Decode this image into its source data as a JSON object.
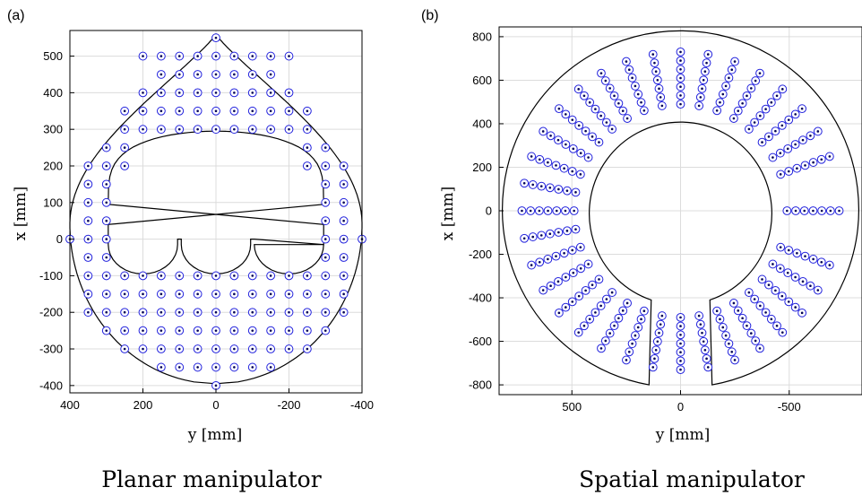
{
  "colors": {
    "marker": "#2222dd",
    "marker_center": "#000055",
    "grid": "#dcdcdc",
    "boundary": "#000000"
  },
  "panels": [
    {
      "label": "(a)",
      "caption": "Planar manipulator",
      "xlabel": "y [mm]",
      "ylabel": "x [mm]",
      "xticks": [
        "400",
        "200",
        "0",
        "-200",
        "-400"
      ],
      "yticks": [
        "500",
        "400",
        "300",
        "200",
        "100",
        "0",
        "-100",
        "-200",
        "-300",
        "-400"
      ]
    },
    {
      "label": "(b)",
      "caption": "Spatial manipulator",
      "xlabel": "y [mm]",
      "ylabel": "x [mm]",
      "xticks": [
        "500",
        "0",
        "-500"
      ],
      "yticks": [
        "800",
        "600",
        "400",
        "200",
        "0",
        "-200",
        "-400",
        "-600",
        "-800"
      ]
    }
  ],
  "chart_data": [
    {
      "type": "scatter",
      "x_axis": {
        "label": "y [mm]",
        "range": [
          400,
          -400
        ],
        "reversed": true,
        "ticks": [
          400,
          200,
          0,
          -200,
          -400
        ]
      },
      "y_axis": {
        "label": "x [mm]",
        "range": [
          -420,
          570
        ],
        "ticks": [
          500,
          400,
          300,
          200,
          100,
          0,
          -100,
          -200,
          -300,
          -400
        ]
      },
      "grid": true,
      "rows": [
        {
          "x": 550,
          "y": [
            0
          ]
        },
        {
          "x": 500,
          "y": [
            200,
            150,
            100,
            50,
            0,
            -50,
            -100,
            -150,
            -200
          ]
        },
        {
          "x": 450,
          "y": [
            150,
            100,
            50,
            0,
            -50,
            -100,
            -150
          ]
        },
        {
          "x": 400,
          "y": [
            200,
            150,
            100,
            50,
            0,
            -50,
            -100,
            -150,
            -200
          ]
        },
        {
          "x": 350,
          "y": [
            250,
            200,
            150,
            100,
            50,
            0,
            -50,
            -100,
            -150,
            -200,
            -250
          ]
        },
        {
          "x": 300,
          "y": [
            250,
            200,
            150,
            100,
            50,
            0,
            -50,
            -100,
            -150,
            -200,
            -250
          ]
        },
        {
          "x": 250,
          "y": [
            300,
            250,
            -250,
            -300
          ]
        },
        {
          "x": 200,
          "y": [
            350,
            300,
            250,
            -250,
            -300,
            -350
          ]
        },
        {
          "x": 150,
          "y": [
            350,
            300,
            -300,
            -350
          ]
        },
        {
          "x": 100,
          "y": [
            350,
            300,
            -300,
            -350
          ]
        },
        {
          "x": 50,
          "y": [
            350,
            300,
            -300,
            -350
          ]
        },
        {
          "x": 0,
          "y": [
            400,
            350,
            300,
            -300,
            -350,
            -400
          ]
        },
        {
          "x": -50,
          "y": [
            350,
            300,
            -300,
            -350
          ]
        },
        {
          "x": -100,
          "y": [
            350,
            300,
            250,
            200,
            150,
            100,
            50,
            0,
            -50,
            -100,
            -150,
            -200,
            -250,
            -300,
            -350
          ]
        },
        {
          "x": -150,
          "y": [
            350,
            300,
            250,
            200,
            150,
            100,
            50,
            0,
            -50,
            -100,
            -150,
            -200,
            -250,
            -300,
            -350
          ]
        },
        {
          "x": -200,
          "y": [
            350,
            300,
            250,
            200,
            150,
            100,
            50,
            0,
            -50,
            -100,
            -150,
            -200,
            -250,
            -300,
            -350
          ]
        },
        {
          "x": -250,
          "y": [
            300,
            250,
            200,
            150,
            100,
            50,
            0,
            -50,
            -100,
            -150,
            -200,
            -250,
            -300
          ]
        },
        {
          "x": -300,
          "y": [
            250,
            200,
            150,
            100,
            50,
            0,
            -50,
            -100,
            -150,
            -200,
            -250
          ]
        },
        {
          "x": -350,
          "y": [
            150,
            100,
            50,
            0,
            -50,
            -100,
            -150
          ]
        },
        {
          "x": -400,
          "y": [
            0
          ]
        }
      ],
      "outer_boundary": {
        "top_x": 560,
        "bottom_x": -395,
        "max_abs_y": 400
      },
      "inner_boundary": {
        "top_x": 295,
        "bottom_x": -95,
        "max_abs_y": 295,
        "notch_y": [
          -100,
          100
        ],
        "notch_top_x": 0
      }
    },
    {
      "type": "scatter",
      "x_axis": {
        "label": "y [mm]",
        "range": [
          835,
          -835
        ],
        "reversed": true,
        "ticks": [
          500,
          0,
          -500
        ]
      },
      "y_axis": {
        "label": "x [mm]",
        "range": [
          -845,
          845
        ],
        "ticks": [
          800,
          600,
          400,
          200,
          0,
          -200,
          -400,
          -600,
          -800
        ]
      },
      "grid": true,
      "spokes": {
        "angles_deg": [
          0,
          10,
          20,
          30,
          40,
          50,
          60,
          70,
          80,
          90,
          100,
          110,
          120,
          130,
          140,
          150,
          160,
          170,
          180,
          190,
          200,
          210,
          220,
          230,
          240,
          250,
          270,
          290,
          300,
          310,
          320,
          330,
          340,
          350
        ],
        "radii": [
          490,
          530,
          570,
          610,
          650,
          690,
          730
        ],
        "angle_convention": "degrees from +x axis toward +y axis"
      },
      "outer_boundary": {
        "radius": 820
      },
      "inner_boundary": {
        "radius": 420
      },
      "gap": {
        "inner_y": [
          -135,
          135
        ],
        "inner_x": -410,
        "outer_y": [
          -145,
          145
        ],
        "outer_x": -800
      }
    }
  ]
}
